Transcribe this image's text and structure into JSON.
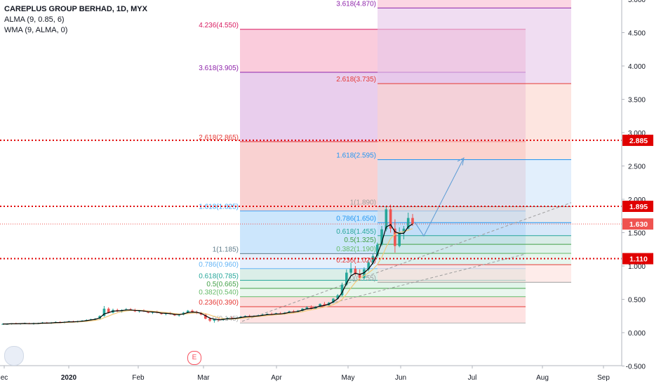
{
  "legend": {
    "title": "CAREPLUS GROUP BERHAD, 1D, MYX",
    "line1": "ALMA (9, 0.85, 6)",
    "line2": "WMA (9, ALMA, 0)"
  },
  "event_marker": "E",
  "colors": {
    "bull": "#26a69a",
    "bear": "#ef5350",
    "hline": "#e00000",
    "alma": "#000000",
    "wma": "#f3c97a",
    "price_line": "#ef5350"
  },
  "chart_data": {
    "type": "candlestick",
    "y_axis": {
      "ticks": [
        "5.000",
        "4.500",
        "4.000",
        "3.500",
        "3.000",
        "2.500",
        "2.000",
        "1.500",
        "1.000",
        "0.500",
        "0.000",
        "-0.500"
      ],
      "range": [
        -0.5,
        5.0
      ]
    },
    "x_axis": {
      "ticks": [
        "ec",
        "2020",
        "Feb",
        "Mar",
        "Apr",
        "May",
        "Jun",
        "Jul",
        "Aug",
        "Sep"
      ]
    },
    "horizontal_lines": [
      {
        "value": 2.885,
        "label": "2.885"
      },
      {
        "value": 1.895,
        "label": "1.895"
      },
      {
        "value": 1.11,
        "label": "1.110"
      }
    ],
    "last_price": {
      "value": 1.63,
      "label": "1.630"
    },
    "fib_left": {
      "levels": [
        {
          "ratio": "4.236(4.550)",
          "value": 4.55
        },
        {
          "ratio": "3.618(3.905)",
          "value": 3.905
        },
        {
          "ratio": "2.618(2.865)",
          "value": 2.865
        },
        {
          "ratio": "1.618(1.825)",
          "value": 1.825
        },
        {
          "ratio": "1(1.185)",
          "value": 1.185
        },
        {
          "ratio": "0.786(0.960)",
          "value": 0.96
        },
        {
          "ratio": "0.618(0.785)",
          "value": 0.785
        },
        {
          "ratio": "0.5(0.665)",
          "value": 0.665
        },
        {
          "ratio": "0.382(0.540)",
          "value": 0.54
        },
        {
          "ratio": "0.236(0.390)",
          "value": 0.39
        },
        {
          "ratio": "0(0.145)",
          "value": 0.145
        }
      ]
    },
    "fib_right": {
      "levels": [
        {
          "ratio": "3.618(4.870)",
          "value": 4.87
        },
        {
          "ratio": "2.618(3.735)",
          "value": 3.735
        },
        {
          "ratio": "1.618(2.595)",
          "value": 2.595
        },
        {
          "ratio": "1(1.890)",
          "value": 1.89
        },
        {
          "ratio": "0.786(1.650)",
          "value": 1.65
        },
        {
          "ratio": "0.618(1.455)",
          "value": 1.455
        },
        {
          "ratio": "0.5(1.325)",
          "value": 1.325
        },
        {
          "ratio": "0.382(1.190)",
          "value": 1.19
        },
        {
          "ratio": "0.236(1.020)",
          "value": 1.02
        },
        {
          "ratio": "0(0.755)",
          "value": 0.755
        }
      ]
    },
    "candles_note": "approximate daily OHLC, Dec 2019 to early Jun 2020",
    "candles": [
      [
        0.13,
        0.14,
        0.12,
        0.13
      ],
      [
        0.13,
        0.14,
        0.12,
        0.13
      ],
      [
        0.13,
        0.14,
        0.12,
        0.14
      ],
      [
        0.14,
        0.15,
        0.13,
        0.13
      ],
      [
        0.13,
        0.14,
        0.12,
        0.14
      ],
      [
        0.14,
        0.15,
        0.13,
        0.14
      ],
      [
        0.14,
        0.15,
        0.13,
        0.13
      ],
      [
        0.13,
        0.15,
        0.12,
        0.14
      ],
      [
        0.14,
        0.15,
        0.13,
        0.14
      ],
      [
        0.14,
        0.16,
        0.13,
        0.15
      ],
      [
        0.15,
        0.16,
        0.14,
        0.14
      ],
      [
        0.14,
        0.16,
        0.13,
        0.15
      ],
      [
        0.15,
        0.17,
        0.14,
        0.16
      ],
      [
        0.16,
        0.17,
        0.15,
        0.15
      ],
      [
        0.15,
        0.17,
        0.14,
        0.16
      ],
      [
        0.16,
        0.18,
        0.15,
        0.17
      ],
      [
        0.17,
        0.18,
        0.16,
        0.16
      ],
      [
        0.16,
        0.18,
        0.15,
        0.17
      ],
      [
        0.17,
        0.19,
        0.16,
        0.18
      ],
      [
        0.18,
        0.2,
        0.17,
        0.19
      ],
      [
        0.19,
        0.21,
        0.18,
        0.2
      ],
      [
        0.2,
        0.22,
        0.19,
        0.21
      ],
      [
        0.21,
        0.26,
        0.2,
        0.25
      ],
      [
        0.25,
        0.4,
        0.24,
        0.36
      ],
      [
        0.36,
        0.38,
        0.29,
        0.3
      ],
      [
        0.3,
        0.36,
        0.29,
        0.34
      ],
      [
        0.34,
        0.36,
        0.31,
        0.32
      ],
      [
        0.32,
        0.35,
        0.3,
        0.34
      ],
      [
        0.34,
        0.37,
        0.32,
        0.35
      ],
      [
        0.35,
        0.37,
        0.33,
        0.34
      ],
      [
        0.34,
        0.36,
        0.31,
        0.32
      ],
      [
        0.32,
        0.34,
        0.3,
        0.33
      ],
      [
        0.33,
        0.35,
        0.31,
        0.32
      ],
      [
        0.32,
        0.33,
        0.29,
        0.3
      ],
      [
        0.3,
        0.32,
        0.28,
        0.31
      ],
      [
        0.31,
        0.33,
        0.29,
        0.3
      ],
      [
        0.3,
        0.31,
        0.27,
        0.28
      ],
      [
        0.28,
        0.3,
        0.26,
        0.29
      ],
      [
        0.29,
        0.31,
        0.27,
        0.28
      ],
      [
        0.28,
        0.29,
        0.25,
        0.26
      ],
      [
        0.26,
        0.28,
        0.24,
        0.27
      ],
      [
        0.27,
        0.31,
        0.26,
        0.3
      ],
      [
        0.3,
        0.34,
        0.29,
        0.33
      ],
      [
        0.33,
        0.35,
        0.3,
        0.31
      ],
      [
        0.31,
        0.33,
        0.28,
        0.29
      ],
      [
        0.29,
        0.31,
        0.26,
        0.27
      ],
      [
        0.27,
        0.28,
        0.2,
        0.21
      ],
      [
        0.21,
        0.23,
        0.16,
        0.18
      ],
      [
        0.18,
        0.21,
        0.15,
        0.2
      ],
      [
        0.2,
        0.22,
        0.17,
        0.19
      ],
      [
        0.19,
        0.22,
        0.18,
        0.21
      ],
      [
        0.21,
        0.23,
        0.19,
        0.22
      ],
      [
        0.22,
        0.24,
        0.2,
        0.21
      ],
      [
        0.21,
        0.23,
        0.2,
        0.22
      ],
      [
        0.22,
        0.25,
        0.21,
        0.24
      ],
      [
        0.24,
        0.26,
        0.22,
        0.25
      ],
      [
        0.25,
        0.27,
        0.23,
        0.24
      ],
      [
        0.24,
        0.26,
        0.23,
        0.25
      ],
      [
        0.25,
        0.27,
        0.24,
        0.26
      ],
      [
        0.26,
        0.28,
        0.25,
        0.27
      ],
      [
        0.27,
        0.29,
        0.26,
        0.28
      ],
      [
        0.28,
        0.3,
        0.26,
        0.27
      ],
      [
        0.27,
        0.3,
        0.26,
        0.29
      ],
      [
        0.29,
        0.31,
        0.27,
        0.28
      ],
      [
        0.28,
        0.31,
        0.27,
        0.3
      ],
      [
        0.3,
        0.33,
        0.29,
        0.32
      ],
      [
        0.32,
        0.34,
        0.3,
        0.31
      ],
      [
        0.31,
        0.34,
        0.3,
        0.33
      ],
      [
        0.33,
        0.37,
        0.32,
        0.36
      ],
      [
        0.36,
        0.4,
        0.35,
        0.38
      ],
      [
        0.38,
        0.41,
        0.35,
        0.36
      ],
      [
        0.36,
        0.4,
        0.35,
        0.39
      ],
      [
        0.39,
        0.44,
        0.38,
        0.43
      ],
      [
        0.43,
        0.46,
        0.4,
        0.41
      ],
      [
        0.41,
        0.46,
        0.4,
        0.45
      ],
      [
        0.45,
        0.52,
        0.44,
        0.51
      ],
      [
        0.51,
        0.58,
        0.5,
        0.56
      ],
      [
        0.56,
        0.75,
        0.55,
        0.72
      ],
      [
        0.72,
        0.95,
        0.7,
        0.9
      ],
      [
        0.9,
        1.05,
        0.85,
        0.96
      ],
      [
        0.96,
        1.0,
        0.86,
        0.88
      ],
      [
        0.88,
        0.95,
        0.78,
        0.82
      ],
      [
        0.82,
        0.98,
        0.8,
        0.95
      ],
      [
        0.95,
        1.08,
        0.92,
        1.05
      ],
      [
        1.05,
        1.18,
        1.02,
        1.15
      ],
      [
        1.15,
        1.35,
        1.12,
        1.32
      ],
      [
        1.32,
        1.6,
        1.3,
        1.55
      ],
      [
        1.55,
        1.9,
        1.52,
        1.85
      ],
      [
        1.85,
        1.92,
        1.5,
        1.56
      ],
      [
        1.56,
        1.7,
        1.2,
        1.3
      ],
      [
        1.3,
        1.58,
        1.28,
        1.5
      ],
      [
        1.5,
        1.6,
        1.4,
        1.56
      ],
      [
        1.56,
        1.8,
        1.55,
        1.72
      ],
      [
        1.72,
        1.78,
        1.6,
        1.63
      ]
    ]
  }
}
